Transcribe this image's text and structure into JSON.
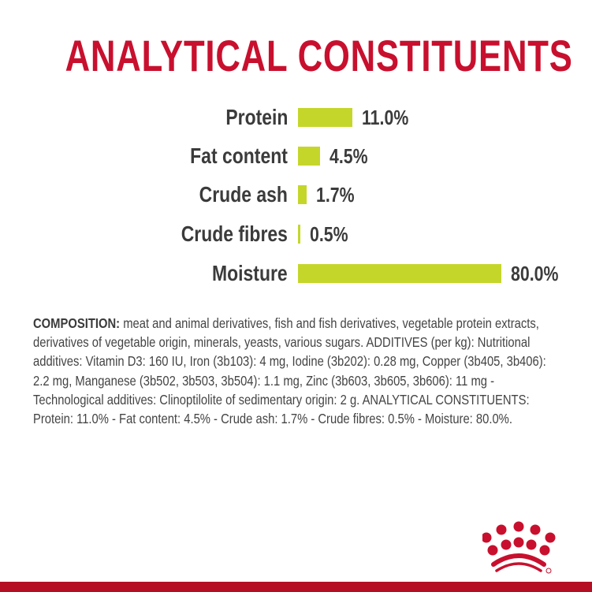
{
  "title": "ANALYTICAL CONSTITUENTS",
  "chart_data": {
    "type": "bar",
    "orientation": "horizontal",
    "categories": [
      "Protein",
      "Fat content",
      "Crude ash",
      "Crude fibres",
      "Moisture"
    ],
    "values": [
      11.0,
      4.5,
      1.7,
      0.5,
      80.0
    ],
    "value_labels": [
      "11.0%",
      "4.5%",
      "1.7%",
      "0.5%",
      "80.0%"
    ],
    "unit": "%",
    "bar_color": "#c5d62b",
    "grid": false
  },
  "composition": {
    "label": "COMPOSITION:",
    "text": " meat and animal derivatives, fish and fish derivatives, vegetable protein extracts, derivatives of vegetable origin, minerals, yeasts, various sugars. ADDITIVES (per kg): Nutritional additives: Vitamin D3: 160 IU, Iron (3b103): 4 mg, Iodine (3b202): 0.28 mg, Copper (3b405, 3b406): 2.2 mg, Manganese (3b502, 3b503, 3b504): 1.1 mg, Zinc (3b603, 3b605, 3b606): 11 mg - Technological additives: Clinoptilolite of sedimentary origin: 2 g. ANALYTICAL CONSTITUENTS: Protein: 11.0% - Fat content: 4.5% - Crude ash: 1.7% - Crude fibres: 0.5% - Moisture: 80.0%."
  },
  "colors": {
    "brand_red": "#c8102e",
    "footer_red": "#b50f24",
    "bar": "#c5d62b"
  },
  "logo_icon": "royal-canin-crown-logo"
}
